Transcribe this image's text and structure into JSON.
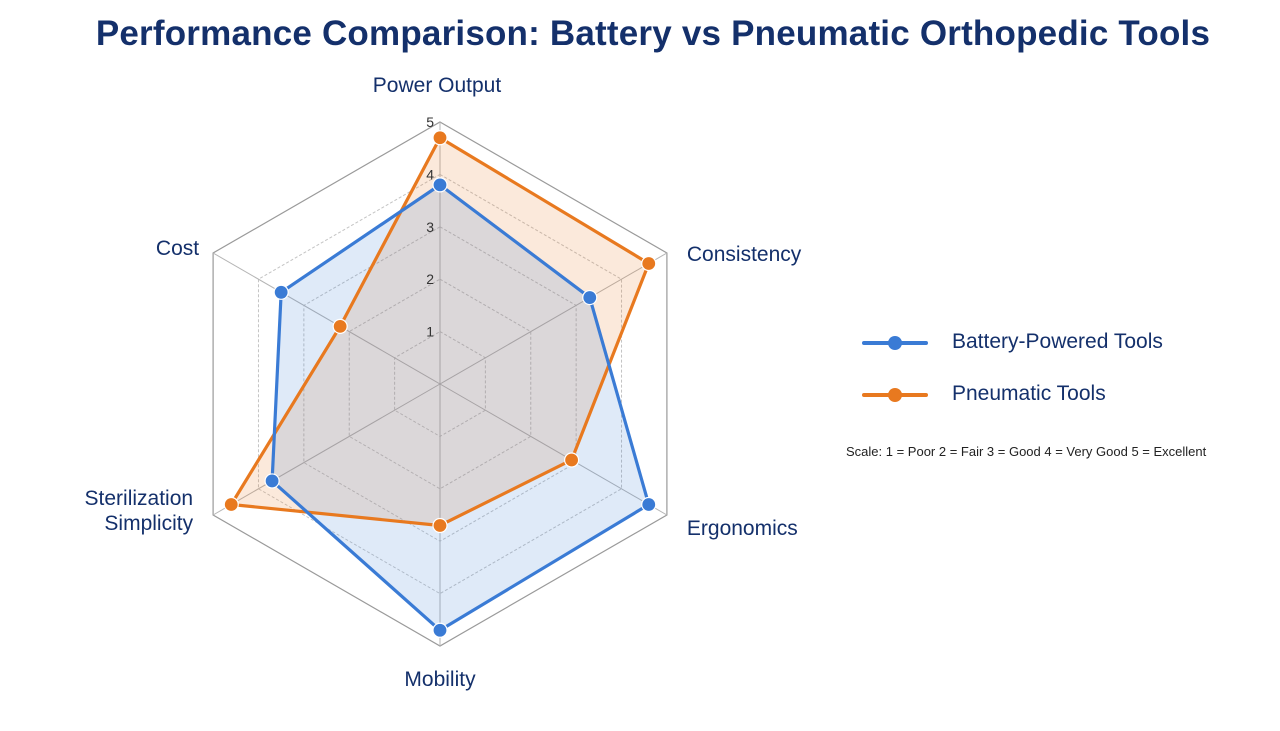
{
  "title": "Performance Comparison: Battery vs Pneumatic Orthopedic Tools",
  "scale_note": "Scale: 1 = Poor   2 = Fair   3 = Good   4 = Very Good   5 = Excellent",
  "chart_data": {
    "type": "radar",
    "axes": [
      "Power Output",
      "Consistency",
      "Ergonomics",
      "Mobility",
      "Sterilization Simplicity",
      "Cost"
    ],
    "tick_labels": [
      "1",
      "2",
      "3",
      "4",
      "5"
    ],
    "range": [
      0,
      5
    ],
    "series": [
      {
        "name": "Battery-Powered Tools",
        "color": "#3a7bd5",
        "values": [
          3.8,
          3.3,
          4.6,
          4.7,
          3.7,
          3.5
        ]
      },
      {
        "name": "Pneumatic Tools",
        "color": "#e8791f",
        "values": [
          4.7,
          4.6,
          2.9,
          2.7,
          4.6,
          2.2
        ]
      }
    ]
  }
}
